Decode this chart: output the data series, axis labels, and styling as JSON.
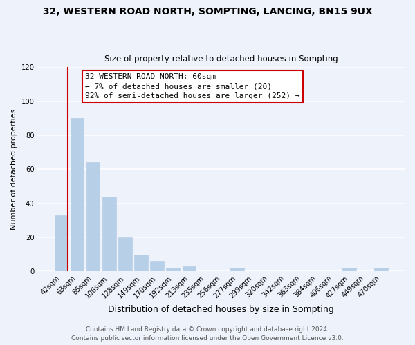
{
  "title": "32, WESTERN ROAD NORTH, SOMPTING, LANCING, BN15 9UX",
  "subtitle": "Size of property relative to detached houses in Sompting",
  "xlabel": "Distribution of detached houses by size in Sompting",
  "ylabel": "Number of detached properties",
  "bar_labels": [
    "42sqm",
    "63sqm",
    "85sqm",
    "106sqm",
    "128sqm",
    "149sqm",
    "170sqm",
    "192sqm",
    "213sqm",
    "235sqm",
    "256sqm",
    "277sqm",
    "299sqm",
    "320sqm",
    "342sqm",
    "363sqm",
    "384sqm",
    "406sqm",
    "427sqm",
    "449sqm",
    "470sqm"
  ],
  "bar_values": [
    33,
    90,
    64,
    44,
    20,
    10,
    6,
    2,
    3,
    0,
    0,
    2,
    0,
    0,
    0,
    0,
    0,
    0,
    2,
    0,
    2
  ],
  "bar_color": "#b8cfe8",
  "annotation_box_text": "32 WESTERN ROAD NORTH: 60sqm\n← 7% of detached houses are smaller (20)\n92% of semi-detached houses are larger (252) →",
  "vline_x": 0.42,
  "ylim": [
    0,
    120
  ],
  "yticks": [
    0,
    20,
    40,
    60,
    80,
    100,
    120
  ],
  "footer_line1": "Contains HM Land Registry data © Crown copyright and database right 2024.",
  "footer_line2": "Contains public sector information licensed under the Open Government Licence v3.0.",
  "background_color": "#eef2fb",
  "grid_color": "#ffffff",
  "annotation_box_color": "#ffffff",
  "annotation_border_color": "#cc0000",
  "vline_color": "#cc0000",
  "title_fontsize": 10,
  "subtitle_fontsize": 8.5,
  "ylabel_fontsize": 8,
  "xlabel_fontsize": 9,
  "tick_fontsize": 7.2,
  "footer_fontsize": 6.5,
  "ann_fontsize": 8
}
